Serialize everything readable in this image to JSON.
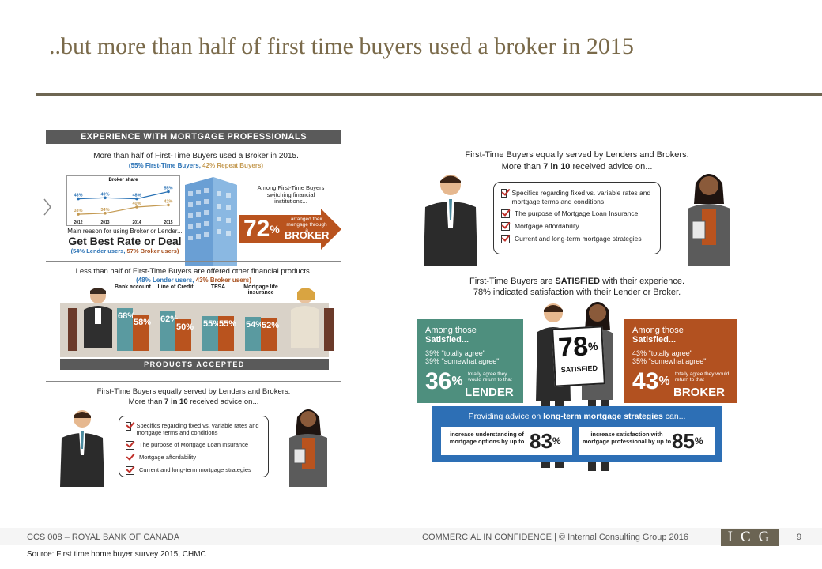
{
  "slide": {
    "title": "..but more than half of first time buyers used a broker in 2015",
    "page_number": "9"
  },
  "footer": {
    "left": "CCS 008 – ROYAL BANK OF CANADA",
    "center": "COMMERCIAL IN CONFIDENCE  |  © Internal Consulting Group 2016",
    "logo": "ICG",
    "source": "Source: First time home buyer survey 2015, CHMC"
  },
  "left_panel": {
    "header": "EXPERIENCE WITH MORTGAGE PROFESSIONALS",
    "broker_intro": "More than half of First-Time Buyers used a Broker in 2015.",
    "broker_sub_a": "(55% First-Time Buyers,",
    "broker_sub_b": " 42% Repeat Buyers)",
    "mini_chart": {
      "title": "Broker share",
      "years": [
        "2012",
        "2013",
        "2014",
        "2015"
      ],
      "ftb": [
        "48%",
        "49%",
        "48%",
        "55%"
      ],
      "repeat": [
        "33%",
        "34%",
        "40%",
        "42%"
      ],
      "ftb_values": [
        48,
        49,
        48,
        55
      ],
      "repeat_values": [
        33,
        34,
        40,
        42
      ]
    },
    "reason_intro": "Main reason for using Broker or Lender...",
    "reason_main": "Get Best Rate or Deal",
    "reason_sub_a": "(54% Lender users,",
    "reason_sub_b": " 57% Broker users)",
    "switch_intro": "Among First-Time Buyers switching financial institutions...",
    "switch_pct": "72",
    "switch_pct_sign": "%",
    "switch_text": "arranged their mortgage through a",
    "switch_broker": "BROKER",
    "products_intro": "Less than half of First-Time Buyers are offered other financial products.",
    "products_sub_a": "(48% Lender users,",
    "products_sub_b": " 43% Broker users)",
    "products": [
      {
        "label": "Bank account",
        "lender": "68",
        "broker": "58",
        "lender_value": 68,
        "broker_value": 58
      },
      {
        "label": "Line of Credit",
        "lender": "62",
        "broker": "50",
        "lender_value": 62,
        "broker_value": 50
      },
      {
        "label": "TFSA",
        "lender": "55",
        "broker": "55",
        "lender_value": 55,
        "broker_value": 55
      },
      {
        "label": "Mortgage life insurance",
        "lender": "54",
        "broker": "52",
        "lender_value": 54,
        "broker_value": 52
      }
    ],
    "pct_sign": "%",
    "products_footer": "PRODUCTS ACCEPTED",
    "served_1": "First-Time Buyers equally served by Lenders and Brokers.",
    "served_2a": "More than ",
    "served_2b": "7 in 10",
    "served_2c": " received advice on...",
    "advice": [
      "Specifics regarding fixed vs. variable rates and mortgage terms and conditions",
      "The purpose of Mortgage Loan Insurance",
      "Mortgage affordability",
      "Current and long-term mortgage strategies"
    ]
  },
  "right_panel": {
    "served_1": "First-Time Buyers equally served by Lenders and Brokers.",
    "served_2a": "More than ",
    "served_2b": "7 in 10",
    "served_2c": " received advice on...",
    "advice": [
      "Specifics regarding fixed vs. variable rates and mortgage terms and conditions",
      "The purpose of Mortgage Loan Insurance",
      "Mortgage affordability",
      "Current and long-term mortgage strategies"
    ],
    "satisfied_1a": "First-Time Buyers are ",
    "satisfied_1b": "SATISFIED",
    "satisfied_1c": " with their experience.",
    "satisfied_2": "78% indicated satisfaction with their Lender or Broker.",
    "left_box": {
      "title_a": "Among those ",
      "title_b": "Satisfied...",
      "line1": "39% \"totally agree\"",
      "line2": "39% \"somewhat agree\"",
      "big": "36",
      "pct": "%",
      "small": "totally agree they would return to that",
      "word": "LENDER"
    },
    "right_box": {
      "title_a": "Among those ",
      "title_b": "Satisfied...",
      "line1": "43% \"totally agree\"",
      "line2": "35% \"somewhat agree\"",
      "big": "43",
      "pct": "%",
      "small": "totally agree they would return to that",
      "word": "BROKER"
    },
    "center_sign_num": "78",
    "center_sign_pct": "%",
    "center_sign_word": "SATISFIED",
    "blue_title_a": "Providing advice on ",
    "blue_title_b": "long-term mortgage strategies",
    "blue_title_c": " can...",
    "blue_left_text": "increase understanding of mortgage options by up to",
    "blue_left_num": "83",
    "blue_right_text": "increase satisfaction with mortgage professional by up to",
    "blue_right_num": "85",
    "pct_sign": "%"
  },
  "colors": {
    "title": "#7a6a4a",
    "rule": "#6e6652",
    "header_bar": "#5a5a5a",
    "lender_teal": "#5a9aa0",
    "broker_orange": "#b9531e",
    "teal_box": "#4e8f7e",
    "orange_box": "#b25120",
    "blue_box": "#2d6fb5"
  }
}
